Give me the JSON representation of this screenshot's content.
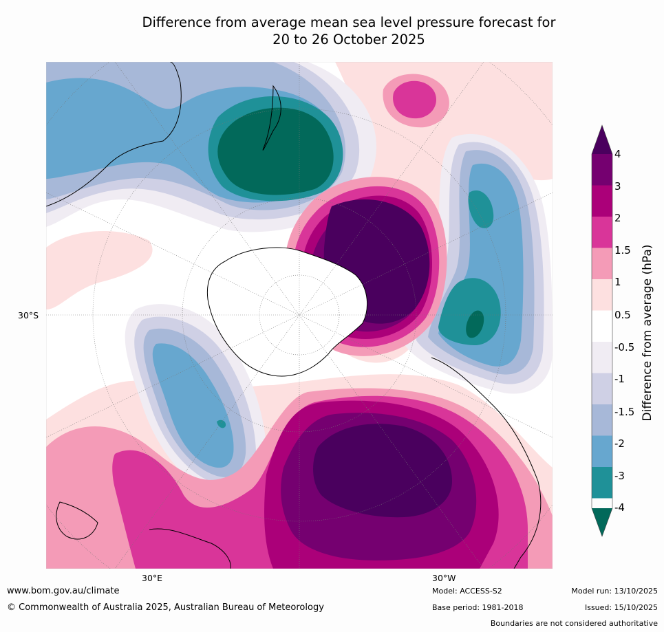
{
  "title": {
    "line1": "Difference from average mean sea level pressure forecast for",
    "line2": "20 to 26 October 2025"
  },
  "map": {
    "projection": "South polar stereographic",
    "lat_label": "30°S",
    "lon_labels": [
      "30°E",
      "30°W"
    ]
  },
  "colorbar": {
    "title": "Difference from average (hPa)",
    "ticks": [
      "4",
      "3",
      "2",
      "1.5",
      "1",
      "0.5",
      "-0.5",
      "-1",
      "-1.5",
      "-2",
      "-3",
      "-4"
    ],
    "colors": {
      "gt4": "#4a005e",
      "3to4": "#750070",
      "2to3": "#ab0079",
      "1.5to2": "#d93599",
      "1to1.5": "#f49bb7",
      "0.5to1": "#fde0e0",
      "neutral": "#ffffff",
      "-1to-0.5": "#f0ecf3",
      "-1.5to-1": "#cfd0e5",
      "-2to-1.5": "#a7b8d8",
      "-3to-2": "#67a7cf",
      "-4to-3": "#1f9198",
      "lt-4": "#02695a"
    }
  },
  "footer": {
    "website": "www.bom.gov.au/climate",
    "copyright": "© Commonwealth of Australia 2025, Australian Bureau of Meteorology",
    "model": "Model: ACCESS-S2",
    "base_period": "Base period: 1981-2018",
    "model_run": "Model run: 13/10/2025",
    "issued": "Issued: 15/10/2025",
    "disclaimer": "Boundaries are not considered authoritative"
  }
}
